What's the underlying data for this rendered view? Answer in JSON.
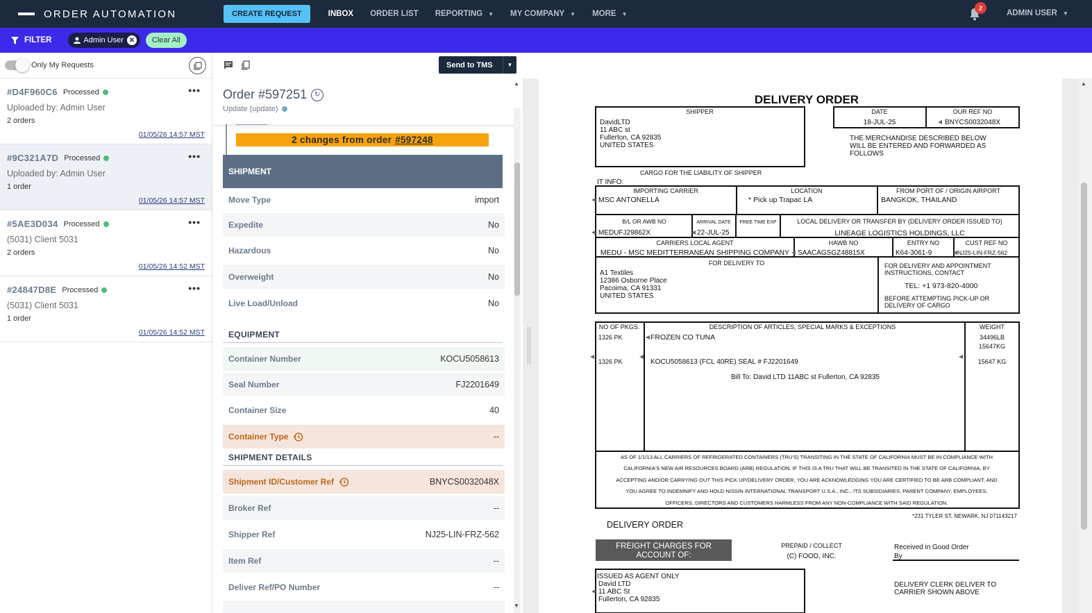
{
  "app": {
    "title": "ORDER AUTOMATION",
    "create_request": "CREATE REQUEST",
    "nav": [
      "INBOX",
      "ORDER LIST",
      "REPORTING",
      "MY COMPANY",
      "MORE"
    ],
    "notifications": "2",
    "user": "ADMIN USER"
  },
  "filter": {
    "label": "FILTER",
    "chip_user": "Admin User",
    "clear_all": "Clear All"
  },
  "left": {
    "toggle_label": "Only My Requests",
    "requests": [
      {
        "id": "#D4F960C6",
        "status": "Processed",
        "sub": "Uploaded by: Admin User",
        "count": "2 orders",
        "date": "01/05/26 14:57 MST"
      },
      {
        "id": "#9C321A7D",
        "status": "Processed",
        "sub": "Uploaded by: Admin User",
        "count": "1 order",
        "date": "01/05/26 14:57 MST"
      },
      {
        "id": "#5AE3D034",
        "status": "Processed",
        "sub": "(5031) Client 5031",
        "count": "2 orders",
        "date": "01/05/26 14:52 MST"
      },
      {
        "id": "#24847D8E",
        "status": "Processed",
        "sub": "(5031) Client 5031",
        "count": "1 order",
        "date": "01/05/26 14:52 MST"
      }
    ]
  },
  "order": {
    "send_button": "Send to TMS",
    "title": "Order #597251",
    "subtitle": "Update (update)",
    "changes_text": "2 changes from order",
    "changes_link": "#597248",
    "shipment_header": "SHIPMENT",
    "shipment": [
      {
        "label": "Move Type",
        "value": "import"
      },
      {
        "label": "Expedite",
        "value": "No"
      },
      {
        "label": "Hazardous",
        "value": "No"
      },
      {
        "label": "Overweight",
        "value": "No"
      },
      {
        "label": "Live Load/Unload",
        "value": "No"
      }
    ],
    "equipment_header": "EQUIPMENT",
    "equipment": [
      {
        "label": "Container Number",
        "value": "KOCU5058613"
      },
      {
        "label": "Seal Number",
        "value": "FJ2201649"
      },
      {
        "label": "Container Size",
        "value": "40"
      },
      {
        "label": "Container Type",
        "value": "--"
      }
    ],
    "details_header": "SHIPMENT DETAILS",
    "details": [
      {
        "label": "Shipment ID/Customer Ref",
        "value": "BNYCS0032048X"
      },
      {
        "label": "Broker Ref",
        "value": "--"
      },
      {
        "label": "Shipper Ref",
        "value": "NJ25-LIN-FRZ-562"
      },
      {
        "label": "Item Ref",
        "value": "--"
      },
      {
        "label": "Deliver Ref/PO Number",
        "value": "--"
      }
    ]
  },
  "document": {
    "title": "DELIVERY ORDER",
    "shipper_label": "SHIPPER",
    "shipper": [
      "DavidLTD",
      "11 ABC st",
      "Fullerton, CA 92835",
      "UNITED STATES"
    ],
    "date_label": "DATE",
    "date": "18-JUL-25",
    "ourref_label": "OUR REF NO",
    "ourref": "BNYCS0032048X",
    "merch_note": [
      "THE MERCHANDISE DESCRIBED BELOW",
      "WILL BE ENTERED AND FORWARDED AS",
      "FOLLOWS"
    ],
    "cargo_note": "CARGO FOR THE LIABILITY OF SHIPPER",
    "it_info": "IT INFO:",
    "importing_carrier_label": "IMPORTING CARRIER",
    "importing_carrier": "MSC ANTONELLA",
    "location_label": "LOCATION",
    "location": "* Pick up  Trapac LA",
    "origin_label": "FROM PORT OF / ORIGIN AIRPORT",
    "origin": "BANGKOK, THAILAND",
    "bl_label": "B/L OR AWB NO",
    "bl": "MEDUFJ29862X",
    "arrival_label": "ARRIVAL DATE",
    "arrival": "22-JUL-25",
    "free_time_label": "FREE TIME EXP",
    "local_delivery_label": "LOCAL DELIVERY OR TRANSFER BY (DELIVERY ORDER ISSUED TO)",
    "local_delivery": "LINEAGE LOGISTICS HOLDINGS, LLC",
    "agent_label": "CARRIERS LOCAL AGENT",
    "agent": "MEDU - MSC MEDITTERRANEAN SHIPPING COMPANY",
    "hawb_label": "HAWB NO",
    "hawb": "SAACAGSGZ48815X",
    "entry_label": "ENTRY NO",
    "entry": "K64-3061-9",
    "custref_label": "CUST REF NO",
    "custref": "NJ25-LIN-FRZ-562",
    "delivery_to_label": "FOR DELIVERY TO",
    "delivery_to": [
      "A1 Textiles",
      "12386 Osborne Place",
      "Pacoima, CA 91331",
      "UNITED STATES"
    ],
    "appointment": [
      "FOR DELIVERY AND APPOINTMENT",
      "INSTRUCTIONS, CONTACT"
    ],
    "tel": "TEL: +1 973-820-4000",
    "before_pickup": [
      "BEFORE ATTEMPTING PICK-UP OR",
      "DELIVERY OF CARGO"
    ],
    "pkgs_label": "NO OF PKGS.",
    "desc_label": "DESCRIPTION OF ARTICLES, SPECIAL MARKS & EXCEPTIONS",
    "weight_label": "WEIGHT",
    "pkgs1": "1326 PK",
    "pkgs2": "1326 PK",
    "desc1": "FROZEN CO TUNA",
    "desc2": "KOCU5058613  (FCL 40RE) SEAL # FJ2201649",
    "desc3": "Bill To: David LTD 11ABC st Fullerton, CA 92835",
    "weight1": "34496LB",
    "weight2": "15647KG",
    "weight3": "15647 KG",
    "carb_note": [
      "AS OF 1/1/13 ALL CARRIERS OF REFRIGERATED CONTAINERS (TRU'S) TRANSITING IN THE STATE OF CALIFORNIA MUST BE IN COMPLIANCE WITH",
      "CALIFORNIA'S NEW AIR RESOURCES BOARD (ARB) REGULATION.  IF THIS IS A TRU THAT WILL BE TRANSITED IN THE STATE OF CALIFORNIA, BY",
      "ACCEPTING AND/OR CARRYING OUT THIS PICK UP/DELIVERY ORDER, YOU ARE ACKNOWLEDGING YOU ARE CERTIFIED TO BE ARB COMPLIANT, AND",
      "YOU AGREE TO INDEMNIFY AND HOLD NISSIN INTERNATIONAL TRANSPORT U.S.A., INC., ITS SUBSIDIARIES, PARENT COMPANY, EMPLOYEES,",
      "OFFICERS, DIRECTORS AND CUSTOMERS HARMLESS FROM ANY NON-COMPLIANCE WITH SAID REGULATION."
    ],
    "address_note": "*231 TYLER ST, NEWARK, NJ 071143217",
    "footer_title": "DELIVERY ORDER",
    "freight_charges": [
      "FREIGHT CHARGES FOR",
      "ACCOUNT OF:"
    ],
    "prepaid": [
      "PREPAID / COLLECT",
      "(C)  FOOD, INC."
    ],
    "received": [
      "Received in Good Order",
      "By"
    ],
    "issued": [
      "ISSUED AS AGENT ONLY",
      "David LTD",
      "11 ABC St",
      "Fullerton, CA 92835"
    ],
    "clerk": [
      "DELIVERY CLERK DELIVER TO",
      "CARRIER SHOWN ABOVE"
    ]
  }
}
